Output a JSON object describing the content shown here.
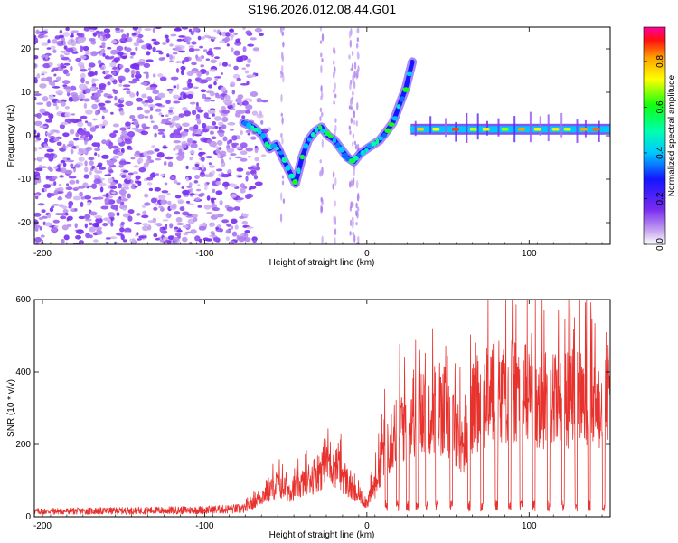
{
  "title": "S196.2026.012.08.44.G01",
  "chart_data": [
    {
      "type": "heatmap",
      "name": "spectrogram",
      "xlabel": "Height of straight line (km)",
      "ylabel": "Frequency (Hz)",
      "xlim": [
        -205,
        150
      ],
      "ylim": [
        -25,
        25
      ],
      "xticks": [
        -200,
        -100,
        0,
        100
      ],
      "yticks": [
        -20,
        -10,
        0,
        10,
        20
      ],
      "colorbar": {
        "label": "Normalized spectral amplitude",
        "range": [
          0,
          0.95
        ],
        "ticks": [
          "0.0",
          "0.2",
          "0.4",
          "0.6",
          "0.8"
        ],
        "tick_values": [
          0.0,
          0.2,
          0.4,
          0.6,
          0.8
        ]
      },
      "noise_region_x": [
        -205,
        -75
      ],
      "signal_track": [
        {
          "x": -76,
          "f": 3
        },
        {
          "x": -70,
          "f": 2
        },
        {
          "x": -64,
          "f": 0
        },
        {
          "x": -60,
          "f": -3
        },
        {
          "x": -56,
          "f": -2
        },
        {
          "x": -52,
          "f": -5
        },
        {
          "x": -48,
          "f": -8
        },
        {
          "x": -44,
          "f": -11
        },
        {
          "x": -40,
          "f": -5
        },
        {
          "x": -36,
          "f": -1
        },
        {
          "x": -32,
          "f": 1
        },
        {
          "x": -28,
          "f": 2
        },
        {
          "x": -24,
          "f": 0
        },
        {
          "x": -20,
          "f": -1
        },
        {
          "x": -16,
          "f": -3
        },
        {
          "x": -12,
          "f": -5
        },
        {
          "x": -8,
          "f": -6
        },
        {
          "x": -4,
          "f": -4
        },
        {
          "x": 0,
          "f": -3
        },
        {
          "x": 4,
          "f": -2
        },
        {
          "x": 8,
          "f": -1
        },
        {
          "x": 12,
          "f": 1
        },
        {
          "x": 16,
          "f": 3
        },
        {
          "x": 20,
          "f": 7
        },
        {
          "x": 24,
          "f": 11
        },
        {
          "x": 26,
          "f": 14
        },
        {
          "x": 28,
          "f": 17
        }
      ],
      "carrier_band": {
        "x_start": 27,
        "x_end": 150,
        "f": 1.5
      }
    },
    {
      "type": "line",
      "name": "snr",
      "xlabel": "Height of straight line (km)",
      "ylabel": "SNR (10 * v/v)",
      "xlim": [
        -205,
        150
      ],
      "ylim": [
        0,
        600
      ],
      "xticks": [
        -200,
        -100,
        0,
        100
      ],
      "yticks": [
        0,
        200,
        400,
        600
      ],
      "color": "#e8322e",
      "envelope": [
        {
          "x": -205,
          "y": 20
        },
        {
          "x": -150,
          "y": 22
        },
        {
          "x": -100,
          "y": 25
        },
        {
          "x": -75,
          "y": 30
        },
        {
          "x": -62,
          "y": 80
        },
        {
          "x": -55,
          "y": 110
        },
        {
          "x": -48,
          "y": 90
        },
        {
          "x": -40,
          "y": 110
        },
        {
          "x": -30,
          "y": 150
        },
        {
          "x": -25,
          "y": 190
        },
        {
          "x": -18,
          "y": 170
        },
        {
          "x": -8,
          "y": 80
        },
        {
          "x": 0,
          "y": 50
        },
        {
          "x": 5,
          "y": 110
        },
        {
          "x": 10,
          "y": 230
        },
        {
          "x": 20,
          "y": 310
        },
        {
          "x": 30,
          "y": 360
        },
        {
          "x": 40,
          "y": 380
        },
        {
          "x": 50,
          "y": 360
        },
        {
          "x": 60,
          "y": 240
        },
        {
          "x": 66,
          "y": 380
        },
        {
          "x": 75,
          "y": 420
        },
        {
          "x": 85,
          "y": 440
        },
        {
          "x": 100,
          "y": 420
        },
        {
          "x": 115,
          "y": 400
        },
        {
          "x": 130,
          "y": 420
        },
        {
          "x": 140,
          "y": 380
        },
        {
          "x": 150,
          "y": 420
        }
      ],
      "dropouts_x": [
        12,
        19,
        25,
        31,
        37,
        43,
        52,
        63,
        71,
        80,
        88,
        95,
        103,
        112,
        121,
        129,
        137,
        146
      ]
    }
  ]
}
